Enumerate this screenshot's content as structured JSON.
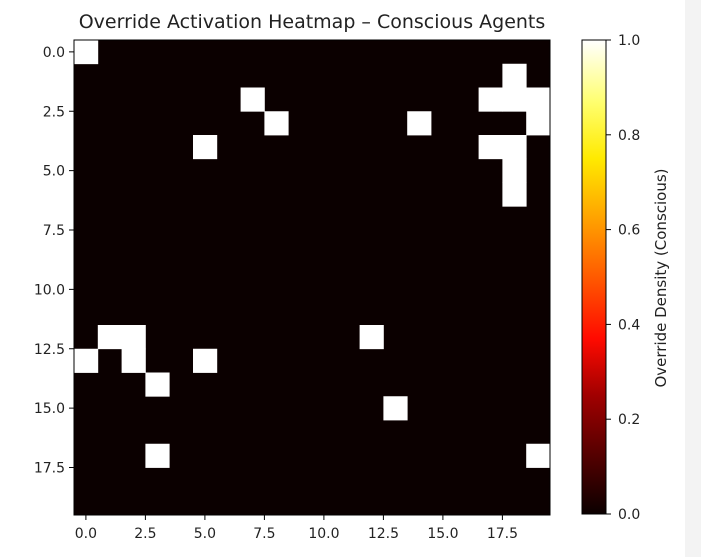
{
  "chart_data": {
    "type": "heatmap",
    "title": "Override Activation Heatmap – Conscious Agents",
    "grid_size": [
      20,
      20
    ],
    "x_ticks": [
      0.0,
      2.5,
      5.0,
      7.5,
      10.0,
      12.5,
      15.0,
      17.5
    ],
    "y_ticks": [
      0.0,
      2.5,
      5.0,
      7.5,
      10.0,
      12.5,
      15.0,
      17.5
    ],
    "x_tick_labels": [
      "0.0",
      "2.5",
      "5.0",
      "7.5",
      "10.0",
      "12.5",
      "15.0",
      "17.5"
    ],
    "y_tick_labels": [
      "0.0",
      "2.5",
      "5.0",
      "7.5",
      "10.0",
      "12.5",
      "15.0",
      "17.5"
    ],
    "xlim": [
      -0.5,
      19.5
    ],
    "ylim": [
      -0.5,
      19.5
    ],
    "colormap": "hot",
    "colors": {
      "low": "#0b0000",
      "high": "#ffffff"
    },
    "active_cells": [
      {
        "row": 0,
        "col": 0,
        "value": 1.0
      },
      {
        "row": 1,
        "col": 18,
        "value": 1.0
      },
      {
        "row": 2,
        "col": 7,
        "value": 1.0
      },
      {
        "row": 2,
        "col": 17,
        "value": 1.0
      },
      {
        "row": 2,
        "col": 18,
        "value": 1.0
      },
      {
        "row": 2,
        "col": 19,
        "value": 1.0
      },
      {
        "row": 3,
        "col": 8,
        "value": 1.0
      },
      {
        "row": 3,
        "col": 14,
        "value": 1.0
      },
      {
        "row": 3,
        "col": 19,
        "value": 1.0
      },
      {
        "row": 4,
        "col": 5,
        "value": 1.0
      },
      {
        "row": 4,
        "col": 17,
        "value": 1.0
      },
      {
        "row": 4,
        "col": 18,
        "value": 1.0
      },
      {
        "row": 5,
        "col": 18,
        "value": 1.0
      },
      {
        "row": 6,
        "col": 18,
        "value": 1.0
      },
      {
        "row": 12,
        "col": 1,
        "value": 1.0
      },
      {
        "row": 12,
        "col": 2,
        "value": 1.0
      },
      {
        "row": 12,
        "col": 12,
        "value": 1.0
      },
      {
        "row": 13,
        "col": 0,
        "value": 1.0
      },
      {
        "row": 13,
        "col": 2,
        "value": 1.0
      },
      {
        "row": 13,
        "col": 5,
        "value": 1.0
      },
      {
        "row": 14,
        "col": 3,
        "value": 1.0
      },
      {
        "row": 15,
        "col": 13,
        "value": 1.0
      },
      {
        "row": 17,
        "col": 3,
        "value": 1.0
      },
      {
        "row": 17,
        "col": 19,
        "value": 1.0
      }
    ],
    "colorbar": {
      "label": "Override Density (Conscious)",
      "range": [
        0.0,
        1.0
      ],
      "ticks": [
        0.0,
        0.2,
        0.4,
        0.6,
        0.8,
        1.0
      ],
      "tick_labels": [
        "0.0",
        "0.2",
        "0.4",
        "0.6",
        "0.8",
        "1.0"
      ]
    }
  }
}
